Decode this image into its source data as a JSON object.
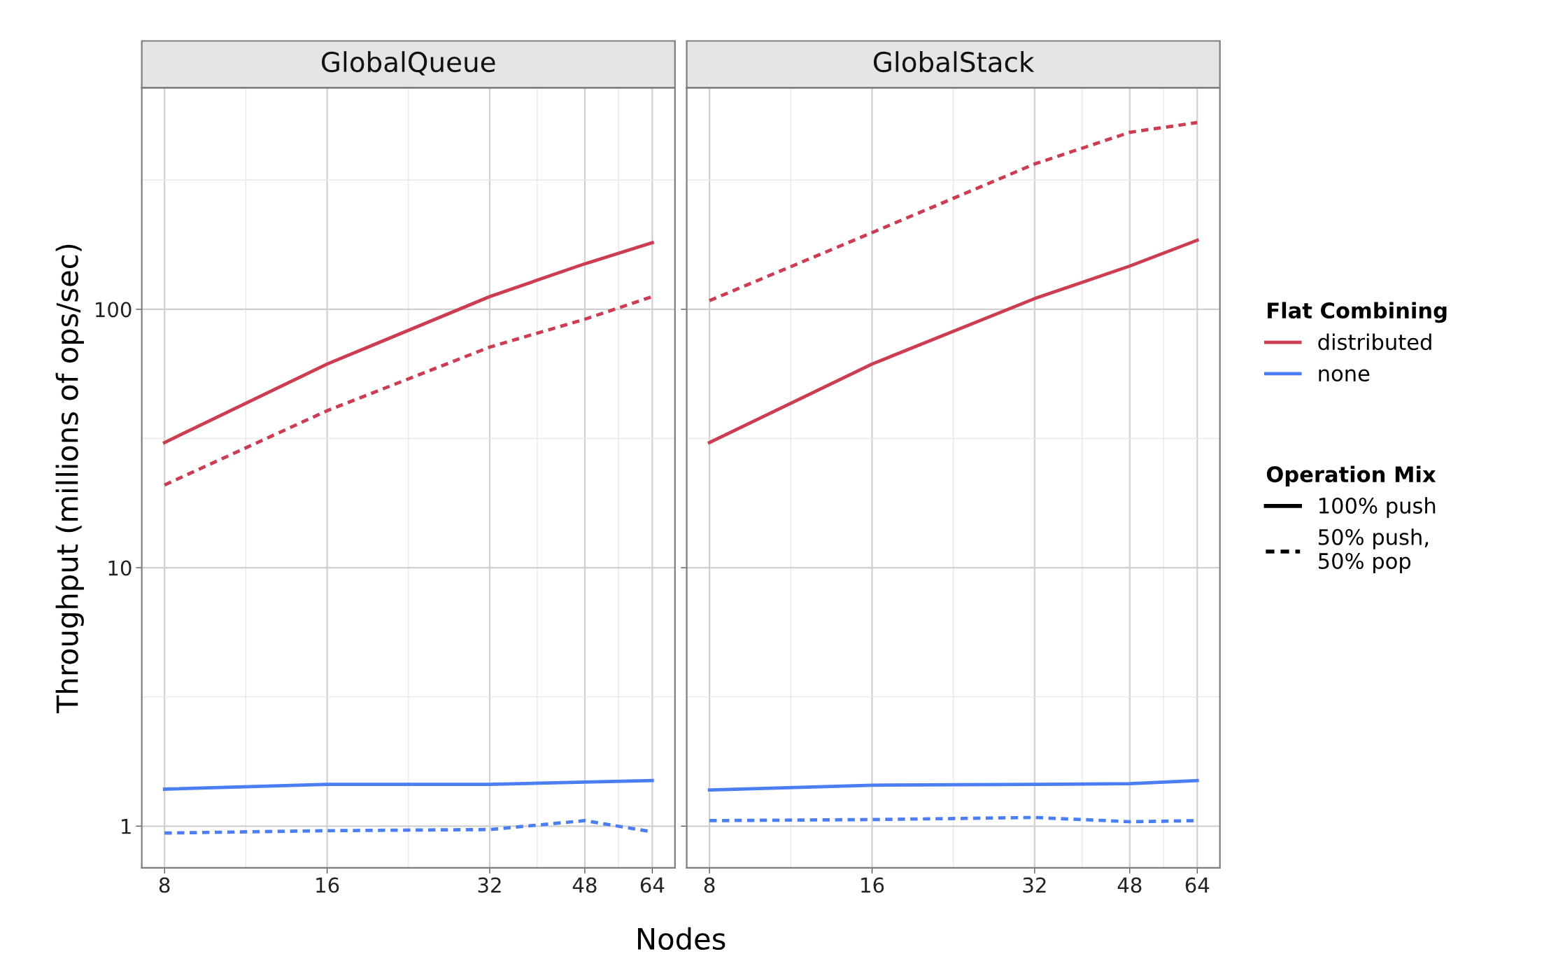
{
  "chart_data": [
    {
      "type": "line",
      "title": "GlobalQueue",
      "ylabel": "Throughput (millions of ops/sec)",
      "xlabel": "Nodes",
      "x": [
        8,
        16,
        32,
        48,
        64
      ],
      "log": "xy",
      "xlim": [
        7.26,
        70.5
      ],
      "xticks": [
        8,
        16,
        32,
        48,
        64
      ],
      "ylim": [
        0.69,
        720
      ],
      "yticks": [
        1,
        10,
        100
      ],
      "grid": true,
      "legend": false,
      "series": [
        {
          "color": "#cc3d52",
          "line_style": "solid",
          "values": [
            30.5,
            61.4,
            112,
            150,
            181
          ]
        },
        {
          "color": "#cc3d52",
          "line_style": "dashed",
          "values": [
            20.9,
            40.5,
            71.4,
            91.5,
            112
          ]
        },
        {
          "color": "#4a7ef2",
          "line_style": "solid",
          "values": [
            1.39,
            1.45,
            1.45,
            1.48,
            1.5
          ]
        },
        {
          "color": "#4a7ef2",
          "line_style": "dashed",
          "values": [
            0.94,
            0.96,
            0.97,
            1.05,
            0.95
          ]
        }
      ]
    },
    {
      "type": "line",
      "title": "GlobalStack",
      "x": [
        8,
        16,
        32,
        48,
        64
      ],
      "log": "xy",
      "xlim": [
        7.26,
        70.5
      ],
      "xticks": [
        8,
        16,
        32,
        48,
        64
      ],
      "ylim": [
        0.69,
        720
      ],
      "yticks": [
        1,
        10,
        100
      ],
      "grid": true,
      "tick_labels": "x",
      "legend": "right",
      "legend_title": [
        "Flat Combining",
        "Operation Mix"
      ],
      "annotations": [
        "100% push",
        "50% push,\n50% pop"
      ],
      "series": [
        {
          "name": "distributed",
          "color": "#cc3d52",
          "line_style": "solid",
          "values": [
            30.5,
            61.4,
            110,
            147,
            185
          ]
        },
        {
          "color": "#cc3d52",
          "line_style": "dashed",
          "values": [
            108,
            198,
            365,
            484,
            528
          ]
        },
        {
          "name": "none",
          "color": "#4a7ef2",
          "line_style": "solid",
          "values": [
            1.38,
            1.44,
            1.45,
            1.46,
            1.5
          ]
        },
        {
          "color": "#4a7ef2",
          "line_style": "dashed",
          "values": [
            1.05,
            1.06,
            1.08,
            1.04,
            1.05
          ]
        }
      ]
    }
  ]
}
